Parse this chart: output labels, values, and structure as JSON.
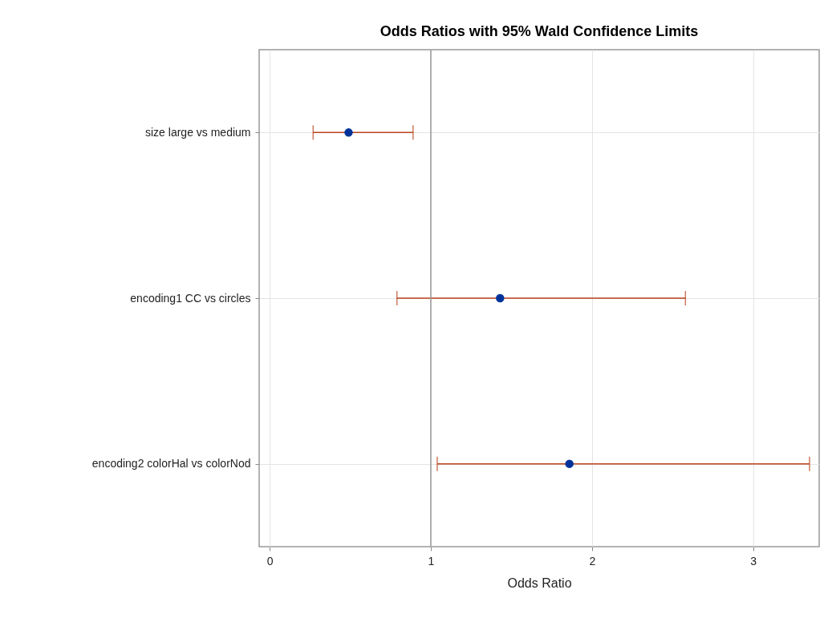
{
  "chart_data": {
    "type": "scatter",
    "orientation": "horizontal",
    "title": "Odds Ratios with 95% Wald Confidence Limits",
    "xlabel": "Odds Ratio",
    "categories": [
      "size large vs medium",
      "encoding1 CC vs circles",
      "encoding2 colorHal vs colorNod"
    ],
    "values": [
      0.49,
      1.43,
      1.86
    ],
    "errors": [
      [
        0.27,
        0.89
      ],
      [
        0.79,
        2.58
      ],
      [
        1.04,
        3.35
      ]
    ],
    "color": "#003399",
    "marker": "circle",
    "grid": true,
    "xlim": [
      -0.065,
      3.41
    ],
    "xticks": [
      0,
      1,
      2,
      3
    ],
    "ref_lines": [
      {
        "axis": "x",
        "value": 1,
        "color": "#999999"
      }
    ]
  }
}
